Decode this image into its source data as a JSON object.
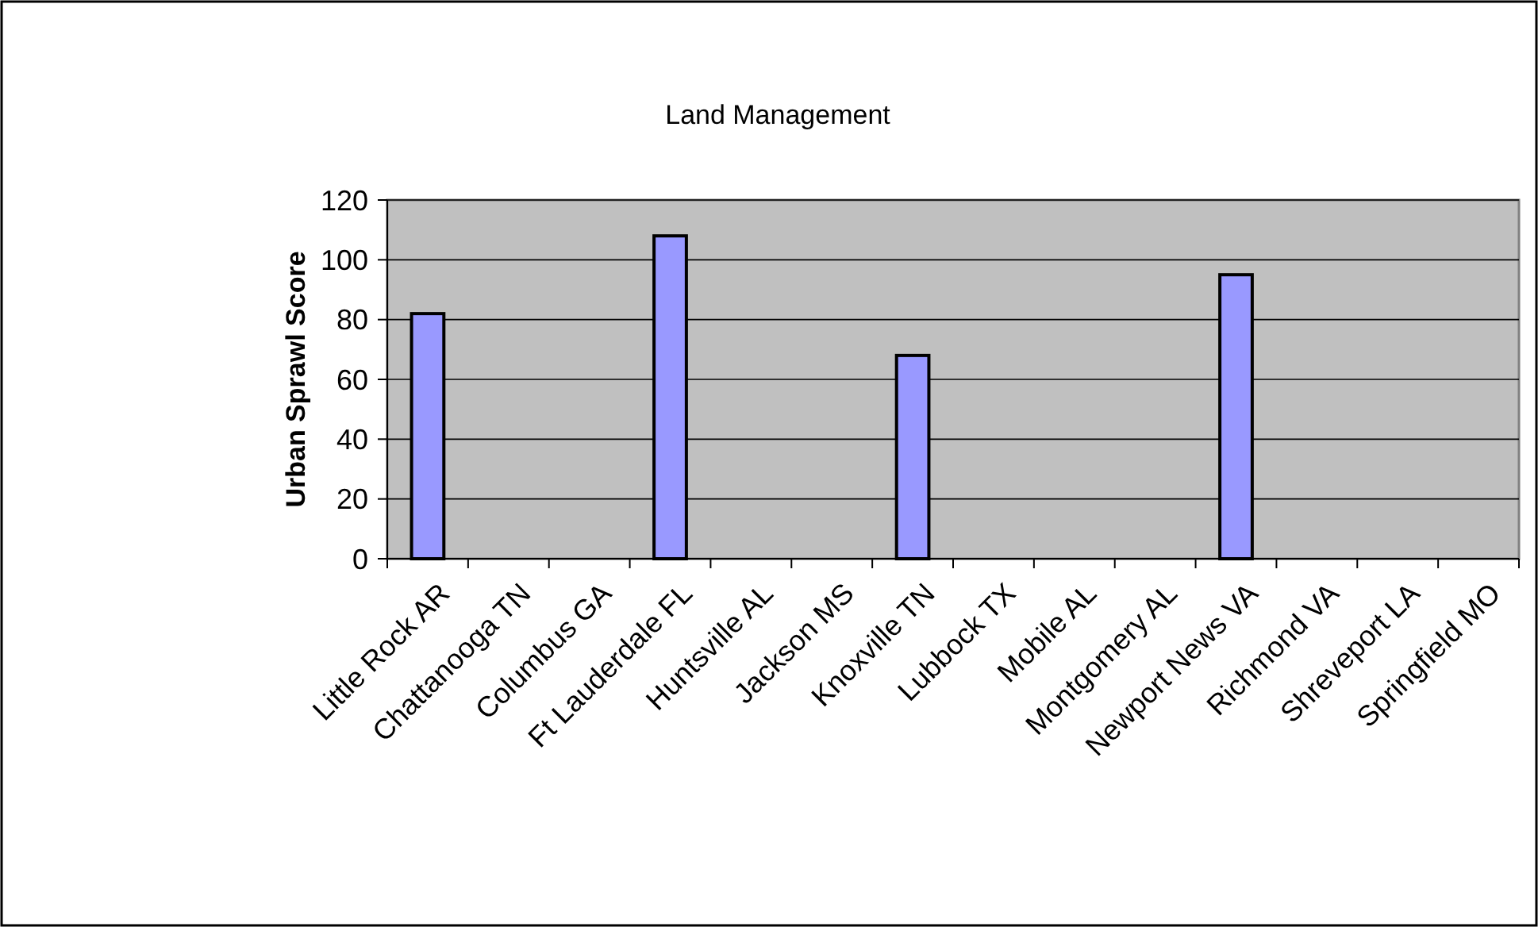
{
  "chart_data": {
    "type": "bar",
    "title": "Land Management",
    "ylabel": "Urban Sprawl Score",
    "categories": [
      "Little Rock AR",
      "Chattanooga TN",
      "Columbus GA",
      "Ft Lauderdale FL",
      "Huntsville AL",
      "Jackson MS",
      "Knoxville TN",
      "Lubbock TX",
      "Mobile AL",
      "Montgomery AL",
      "Newport News VA",
      "Richmond VA",
      "Shreveport LA",
      "Springfield MO"
    ],
    "values": [
      82,
      null,
      null,
      108,
      null,
      null,
      68,
      null,
      null,
      null,
      95,
      null,
      null,
      null
    ],
    "color": "#9999ff",
    "ylim": [
      0,
      120
    ],
    "yticks": [
      0,
      20,
      40,
      60,
      80,
      100,
      120
    ],
    "grid": "y"
  }
}
